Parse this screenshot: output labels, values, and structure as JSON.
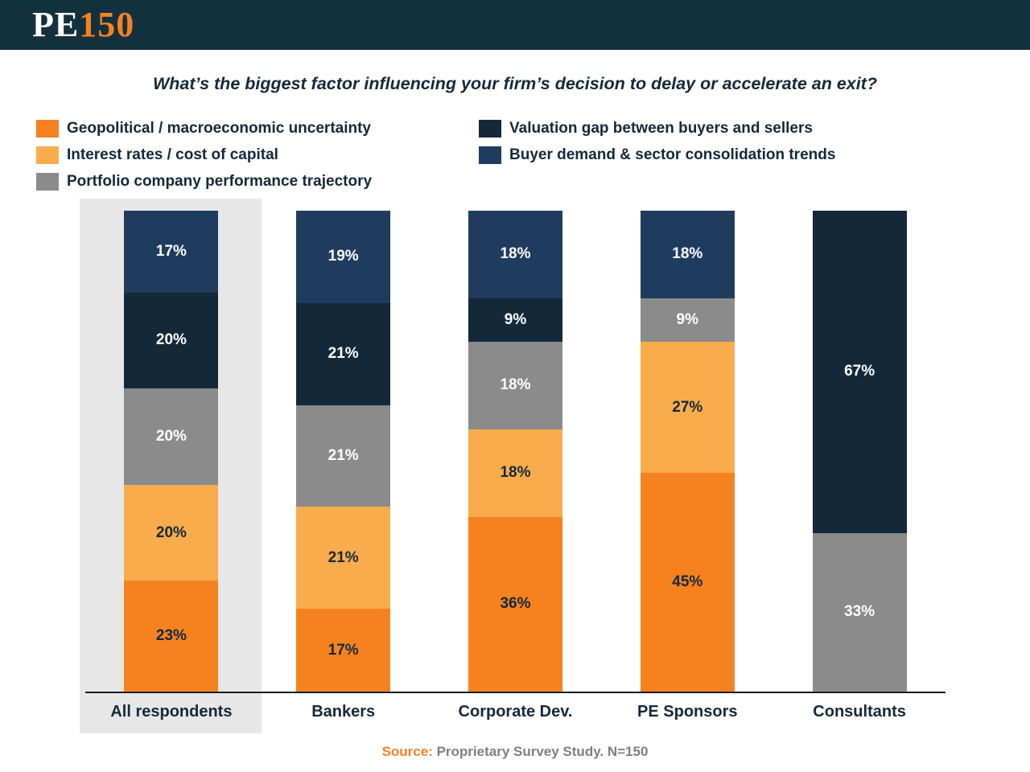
{
  "header": {
    "logo_pe": "PE",
    "logo_150": "150"
  },
  "title": "What’s the biggest factor influencing your firm’s decision to delay or accelerate an exit?",
  "source": {
    "label": "Source:",
    "text": " Proprietary Survey Study. N=150"
  },
  "colors": {
    "orange": "#F5821F",
    "light_orange": "#F9AC4B",
    "gray": "#8B8B8B",
    "dark_navy": "#13293A",
    "medium_navy": "#1F3C5E",
    "header_bg": "#13303E",
    "highlight_band": "#E7E7E7",
    "dark_text": "#14293C",
    "white_text": "#FFFFFF"
  },
  "chart_data": {
    "type": "bar",
    "stacked": true,
    "unit": "%",
    "title": "What’s the biggest factor influencing your firm’s decision to delay or accelerate an exit?",
    "xlabel": "",
    "ylabel": "",
    "ylim": [
      0,
      100
    ],
    "legend_position": "top-left",
    "legend_columns": [
      3,
      2
    ],
    "highlighted_category": "All respondents",
    "categories": [
      "All respondents",
      "Bankers",
      "Corporate Dev.",
      "PE Sponsors",
      "Consultants"
    ],
    "series": [
      {
        "name": "Geopolitical / macroeconomic uncertainty",
        "color_key": "orange",
        "label_color": "dark",
        "values": [
          23,
          17,
          36,
          45,
          0
        ]
      },
      {
        "name": "Interest rates / cost of capital",
        "color_key": "light_orange",
        "label_color": "dark",
        "values": [
          20,
          21,
          18,
          27,
          0
        ]
      },
      {
        "name": "Portfolio company performance trajectory",
        "color_key": "gray",
        "label_color": "white",
        "values": [
          20,
          21,
          18,
          9,
          33
        ]
      },
      {
        "name": "Valuation gap between buyers and sellers",
        "color_key": "dark_navy",
        "label_color": "white",
        "values": [
          20,
          21,
          9,
          0,
          67
        ]
      },
      {
        "name": "Buyer demand & sector consolidation trends",
        "color_key": "medium_navy",
        "label_color": "white",
        "values": [
          17,
          19,
          18,
          18,
          0
        ]
      }
    ]
  }
}
